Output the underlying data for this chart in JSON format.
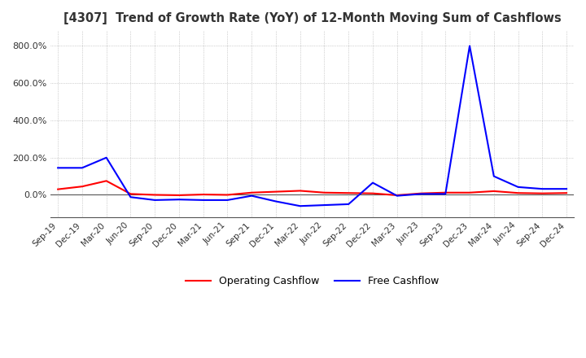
{
  "title": "[4307]  Trend of Growth Rate (YoY) of 12-Month Moving Sum of Cashflows",
  "title_color": "#333333",
  "background_color": "#ffffff",
  "plot_bg_color": "#ffffff",
  "grid_color": "#aaaaaa",
  "x_labels": [
    "Sep-19",
    "Dec-19",
    "Mar-20",
    "Jun-20",
    "Sep-20",
    "Dec-20",
    "Mar-21",
    "Jun-21",
    "Sep-21",
    "Dec-21",
    "Mar-22",
    "Jun-22",
    "Sep-22",
    "Dec-22",
    "Mar-23",
    "Jun-23",
    "Sep-23",
    "Dec-23",
    "Mar-24",
    "Jun-24",
    "Sep-24",
    "Dec-24"
  ],
  "operating_cashflow": [
    0.3,
    0.45,
    0.75,
    0.05,
    0.0,
    -0.02,
    0.02,
    0.0,
    0.12,
    0.17,
    0.22,
    0.12,
    0.1,
    0.08,
    -0.02,
    0.08,
    0.12,
    0.12,
    0.2,
    0.1,
    0.08,
    0.1
  ],
  "free_cashflow": [
    1.45,
    1.45,
    2.0,
    -0.12,
    -0.28,
    -0.25,
    -0.28,
    -0.28,
    -0.05,
    -0.35,
    -0.6,
    -0.55,
    -0.5,
    0.65,
    -0.05,
    0.05,
    0.05,
    8.0,
    1.0,
    0.42,
    0.32,
    0.32
  ],
  "op_color": "#ff0000",
  "free_color": "#0000ff",
  "legend_op": "Operating Cashflow",
  "legend_free": "Free Cashflow",
  "ylim_min": -1.2,
  "ylim_max": 8.8,
  "ytick_vals": [
    0.0,
    2.0,
    4.0,
    6.0,
    8.0
  ],
  "ytick_labels": [
    "0.0%",
    "200.0%",
    "400.0%",
    "600.0%",
    "800.0%"
  ]
}
